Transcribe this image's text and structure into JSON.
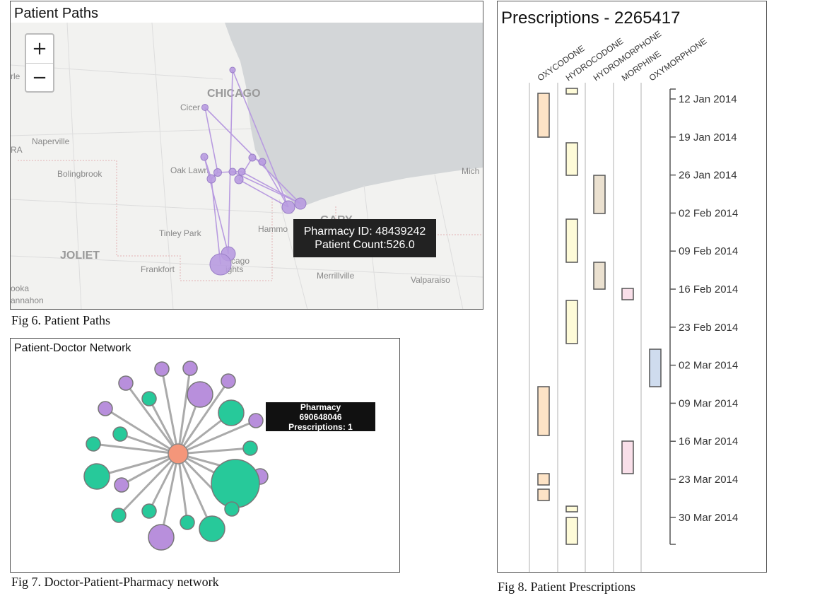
{
  "map_panel": {
    "title": "Patient Paths",
    "caption": "Fig 6. Patient Paths",
    "zoom_in": "+",
    "zoom_out": "−",
    "places": [
      {
        "name": "CHICAGO",
        "big": true
      },
      {
        "name": "Cicer"
      },
      {
        "name": "Naperville"
      },
      {
        "name": "RA"
      },
      {
        "name": "Bolingbrook"
      },
      {
        "name": "Oak Lawn"
      },
      {
        "name": "Tinley Park"
      },
      {
        "name": "Hammo"
      },
      {
        "name": "GARY",
        "big": true
      },
      {
        "name": "JOLIET",
        "big": true
      },
      {
        "name": "Frankfort"
      },
      {
        "name": "cago"
      },
      {
        "name": "ights"
      },
      {
        "name": "Merrillville"
      },
      {
        "name": "Valparaiso"
      },
      {
        "name": "Mich"
      },
      {
        "name": "ooka"
      },
      {
        "name": "annahon"
      },
      {
        "name": "rle"
      }
    ],
    "tooltip": {
      "line1": "Pharmacy ID: 48439242",
      "line2": "Patient Count:526.0"
    },
    "colors": {
      "node": "#b89be0",
      "water": "#d3d6d8",
      "land": "#f2f2f0"
    }
  },
  "network_panel": {
    "title": "Patient-Doctor Network",
    "caption": "Fig 7. Doctor-Patient-Pharmacy network",
    "tooltip": {
      "line1": "Pharmacy",
      "line2": "690648046",
      "line3": "Prescriptions: 1"
    },
    "colors": {
      "center": "#f4967a",
      "patient": "#b88fdc",
      "pharmacy": "#27c99a",
      "edge": "#aaaaaa"
    }
  },
  "prescriptions_panel": {
    "title": "Prescriptions - 2265417",
    "caption": "Fig 8. Patient Prescriptions",
    "drugs": [
      "OXYCODONE",
      "HYDROCODONE",
      "HYDROMORPHONE",
      "MORPHINE",
      "OXYMORPHONE"
    ],
    "dates": [
      "12 Jan 2014",
      "19 Jan 2014",
      "26 Jan 2014",
      "02 Feb 2014",
      "09 Feb 2014",
      "16 Feb 2014",
      "23 Feb 2014",
      "02 Mar 2014",
      "09 Mar 2014",
      "16 Mar 2014",
      "23 Mar 2014",
      "30 Mar 2014"
    ],
    "drug_colors": [
      "#fde3c6",
      "#fefbd8",
      "#ebe1d0",
      "#f9dfe9",
      "#cfdcee"
    ]
  }
}
